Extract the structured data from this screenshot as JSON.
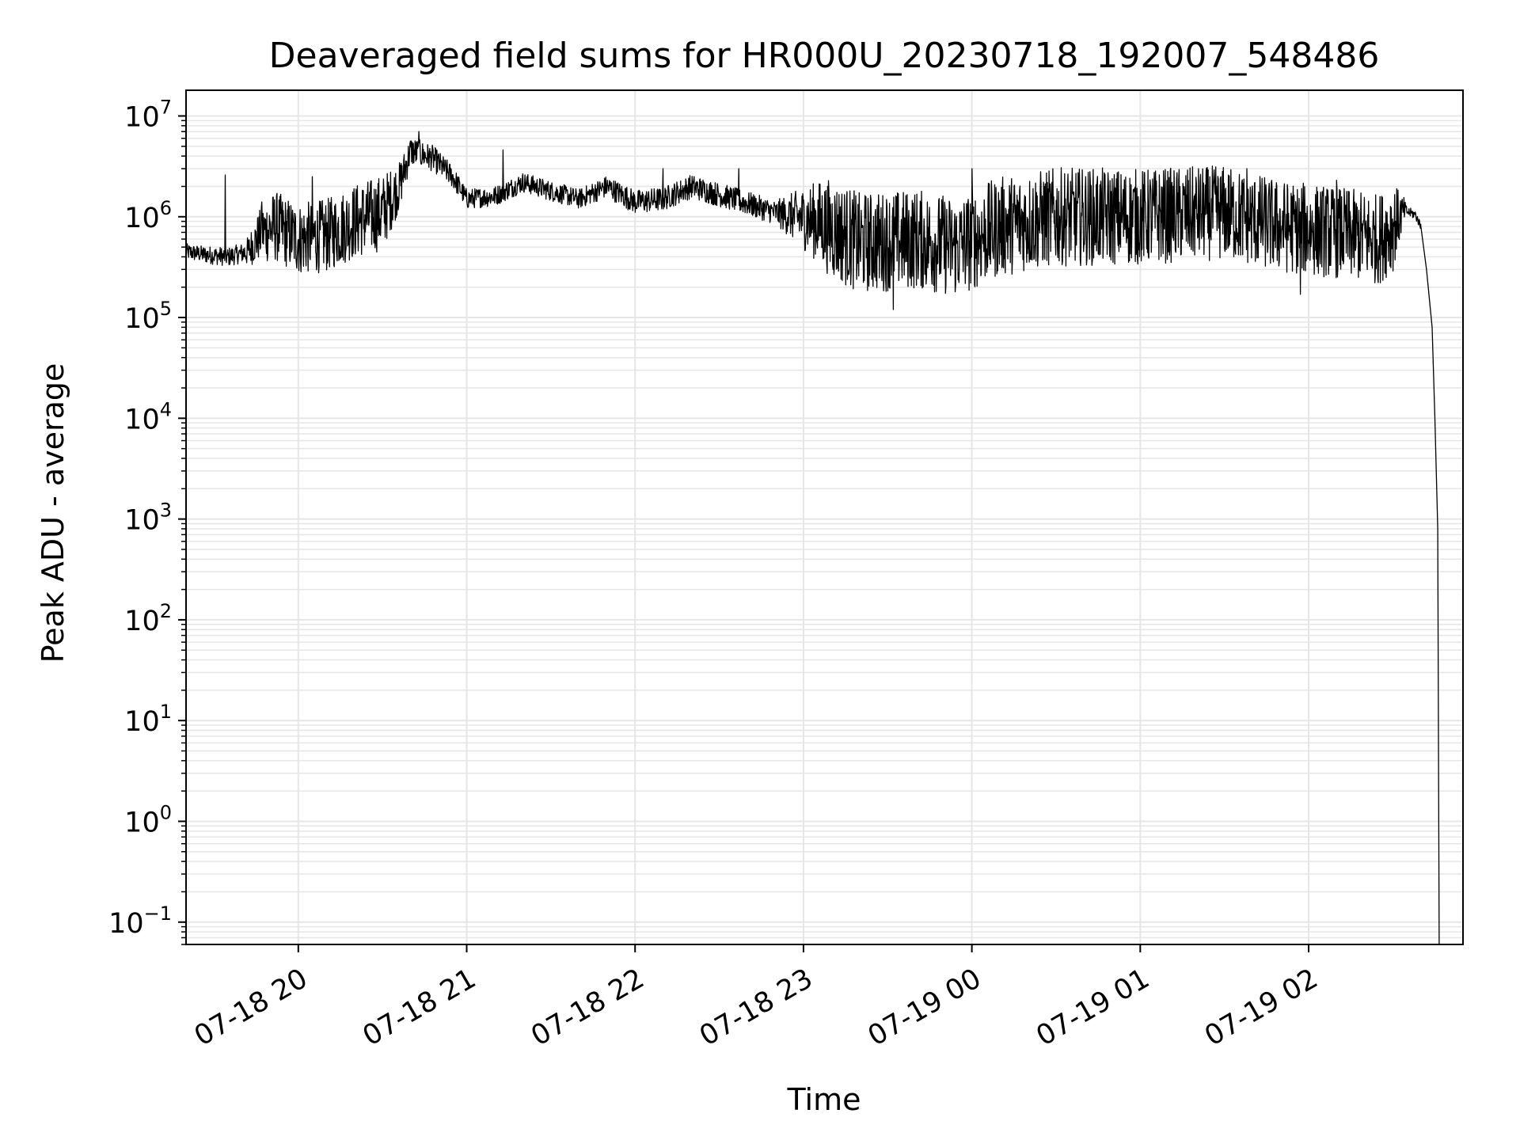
{
  "chart_data": {
    "type": "line",
    "title": "Deaveraged field sums for HR000U_20230718_192007_548486",
    "xlabel": "Time",
    "ylabel": "Peak ADU - average",
    "yscale": "log",
    "grid": true,
    "legend": "none",
    "line_color": "#000000",
    "grid_color": "#e6e6e6",
    "xlim": [
      "07-18 19:20",
      "07-19 02:55"
    ],
    "ylim": [
      0.06,
      18000000
    ],
    "x_ticks": [
      "07-18 20",
      "07-18 21",
      "07-18 22",
      "07-18 23",
      "07-19 00",
      "07-19 01",
      "07-19 02"
    ],
    "y_ticks": [
      {
        "base": "10",
        "exp": "−1",
        "value": 0.1
      },
      {
        "base": "10",
        "exp": "0",
        "value": 1
      },
      {
        "base": "10",
        "exp": "1",
        "value": 10
      },
      {
        "base": "10",
        "exp": "2",
        "value": 100
      },
      {
        "base": "10",
        "exp": "3",
        "value": 1000
      },
      {
        "base": "10",
        "exp": "4",
        "value": 10000
      },
      {
        "base": "10",
        "exp": "5",
        "value": 100000
      },
      {
        "base": "10",
        "exp": "6",
        "value": 1000000
      },
      {
        "base": "10",
        "exp": "7",
        "value": 10000000
      }
    ],
    "series": [
      {
        "noise_decades": [
          [
            "07-18 19:20",
            0.08
          ],
          [
            "07-18 19:40",
            0.1
          ],
          [
            "07-18 19:50",
            0.35
          ],
          [
            "07-18 20:30",
            0.38
          ],
          [
            "07-18 20:40",
            0.15
          ],
          [
            "07-18 21:00",
            0.1
          ],
          [
            "07-18 21:40",
            0.1
          ],
          [
            "07-18 22:00",
            0.12
          ],
          [
            "07-18 22:50",
            0.12
          ],
          [
            "07-18 23:10",
            0.5
          ],
          [
            "07-19 00:00",
            0.5
          ],
          [
            "07-19 02:30",
            0.45
          ],
          [
            "07-19 02:35",
            0.05
          ],
          [
            "07-19 02:48",
            0.03
          ]
        ],
        "points": [
          [
            "07-18 19:20",
            450000
          ],
          [
            "07-18 19:27",
            420000
          ],
          [
            "07-18 19:35",
            400000
          ],
          [
            "07-18 19:42",
            450000
          ],
          [
            "07-18 19:47",
            700000
          ],
          [
            "07-18 19:52",
            800000
          ],
          [
            "07-18 20:00",
            600000
          ],
          [
            "07-18 20:10",
            650000
          ],
          [
            "07-18 20:20",
            900000
          ],
          [
            "07-18 20:30",
            1100000
          ],
          [
            "07-18 20:36",
            2000000
          ],
          [
            "07-18 20:40",
            4500000
          ],
          [
            "07-18 20:48",
            3800000
          ],
          [
            "07-18 20:55",
            2500000
          ],
          [
            "07-18 21:00",
            1500000
          ],
          [
            "07-18 21:10",
            1600000
          ],
          [
            "07-18 21:20",
            2200000
          ],
          [
            "07-18 21:30",
            1800000
          ],
          [
            "07-18 21:40",
            1500000
          ],
          [
            "07-18 21:50",
            2000000
          ],
          [
            "07-18 22:00",
            1400000
          ],
          [
            "07-18 22:10",
            1500000
          ],
          [
            "07-18 22:20",
            2000000
          ],
          [
            "07-18 22:35",
            1500000
          ],
          [
            "07-18 22:50",
            1100000
          ],
          [
            "07-18 23:05",
            900000
          ],
          [
            "07-18 23:20",
            550000
          ],
          [
            "07-18 23:40",
            600000
          ],
          [
            "07-18 23:55",
            500000
          ],
          [
            "07-19 00:10",
            800000
          ],
          [
            "07-19 00:30",
            1000000
          ],
          [
            "07-19 01:00",
            1000000
          ],
          [
            "07-19 01:30",
            1100000
          ],
          [
            "07-19 01:50",
            800000
          ],
          [
            "07-19 02:10",
            700000
          ],
          [
            "07-19 02:25",
            600000
          ],
          [
            "07-19 02:30",
            800000
          ],
          [
            "07-19 02:34",
            1150000
          ],
          [
            "07-19 02:38",
            1050000
          ],
          [
            "07-19 02:40",
            800000
          ],
          [
            "07-19 02:42",
            300000
          ],
          [
            "07-19 02:44",
            80000
          ],
          [
            "07-19 02:45",
            10000
          ],
          [
            "07-19 02:46",
            800
          ],
          [
            "07-19 02:46:30",
            0.06
          ]
        ],
        "spikes": [
          [
            "07-18 19:34",
            2600000
          ],
          [
            "07-18 19:47",
            1400000
          ],
          [
            "07-18 20:05",
            2500000
          ],
          [
            "07-18 20:43",
            7000000
          ],
          [
            "07-18 21:13",
            4600000
          ],
          [
            "07-18 22:10",
            3000000
          ],
          [
            "07-18 22:37",
            3000000
          ],
          [
            "07-18 23:32",
            120000
          ],
          [
            "07-19 00:00",
            3000000
          ],
          [
            "07-19 01:38",
            3000000
          ],
          [
            "07-19 01:57",
            170000
          ],
          [
            "07-19 02:10",
            2300000
          ]
        ]
      }
    ]
  }
}
